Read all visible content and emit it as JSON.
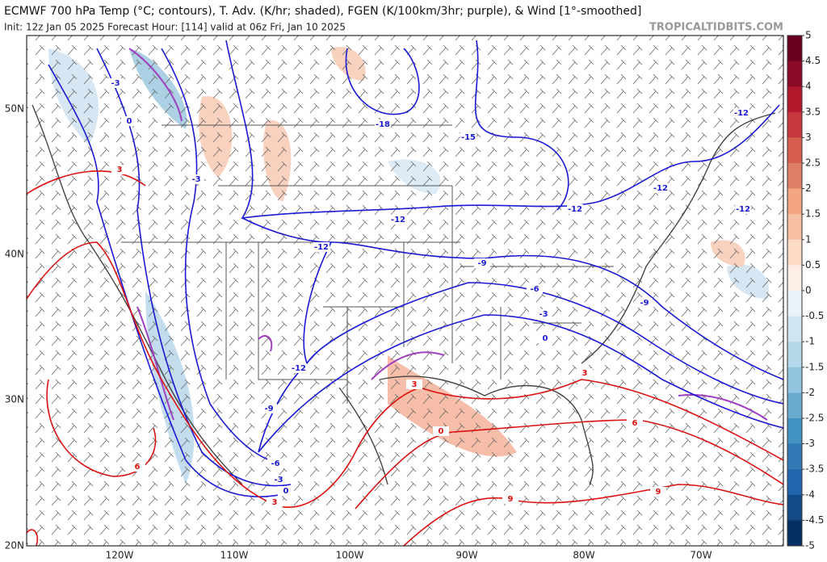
{
  "header": {
    "title": "ECMWF 700 hPa Temp (°C; contours), T. Adv. (K/hr; shaded), FGEN (K/100km/3hr; purple), & Wind [1°-smoothed]",
    "subtitle": "Init: 12z Jan 05 2025   Forecast Hour: [114]   valid at 06z Fri, Jan 10 2025",
    "watermark": "TROPICALTIDBITS.COM"
  },
  "map": {
    "lat_labels": [
      "50N",
      "40N",
      "30N",
      "20N"
    ],
    "lon_labels": [
      "120W",
      "110W",
      "100W",
      "90W",
      "80W",
      "70W"
    ],
    "blue_contour_labels": [
      -3,
      0,
      -3,
      -18,
      -15,
      -12,
      -12,
      -9,
      -6,
      -3,
      0,
      -12,
      -9,
      -6,
      -3,
      0,
      -12,
      -12,
      -12,
      -12,
      -9
    ],
    "red_contour_labels": [
      3,
      6,
      3,
      3,
      0,
      3,
      6,
      9,
      9
    ]
  },
  "colorbar": {
    "ticks": [
      5,
      4.5,
      4,
      3.5,
      3,
      2.5,
      2,
      1.5,
      1,
      0.5,
      0,
      -0.5,
      -1,
      -1.5,
      -2,
      -2.5,
      -3,
      -3.5,
      -4,
      -4.5,
      -5
    ],
    "colors": [
      "#67001f",
      "#8b0a26",
      "#b2182b",
      "#c7373e",
      "#d6604d",
      "#e07f68",
      "#f4a582",
      "#f7bfa4",
      "#fddbc7",
      "#fdeee6",
      "#ecf3f8",
      "#d1e5f0",
      "#b5d7ea",
      "#92c5de",
      "#6aaccf",
      "#4393c3",
      "#3079b4",
      "#2166ac",
      "#124b87",
      "#053061"
    ]
  }
}
